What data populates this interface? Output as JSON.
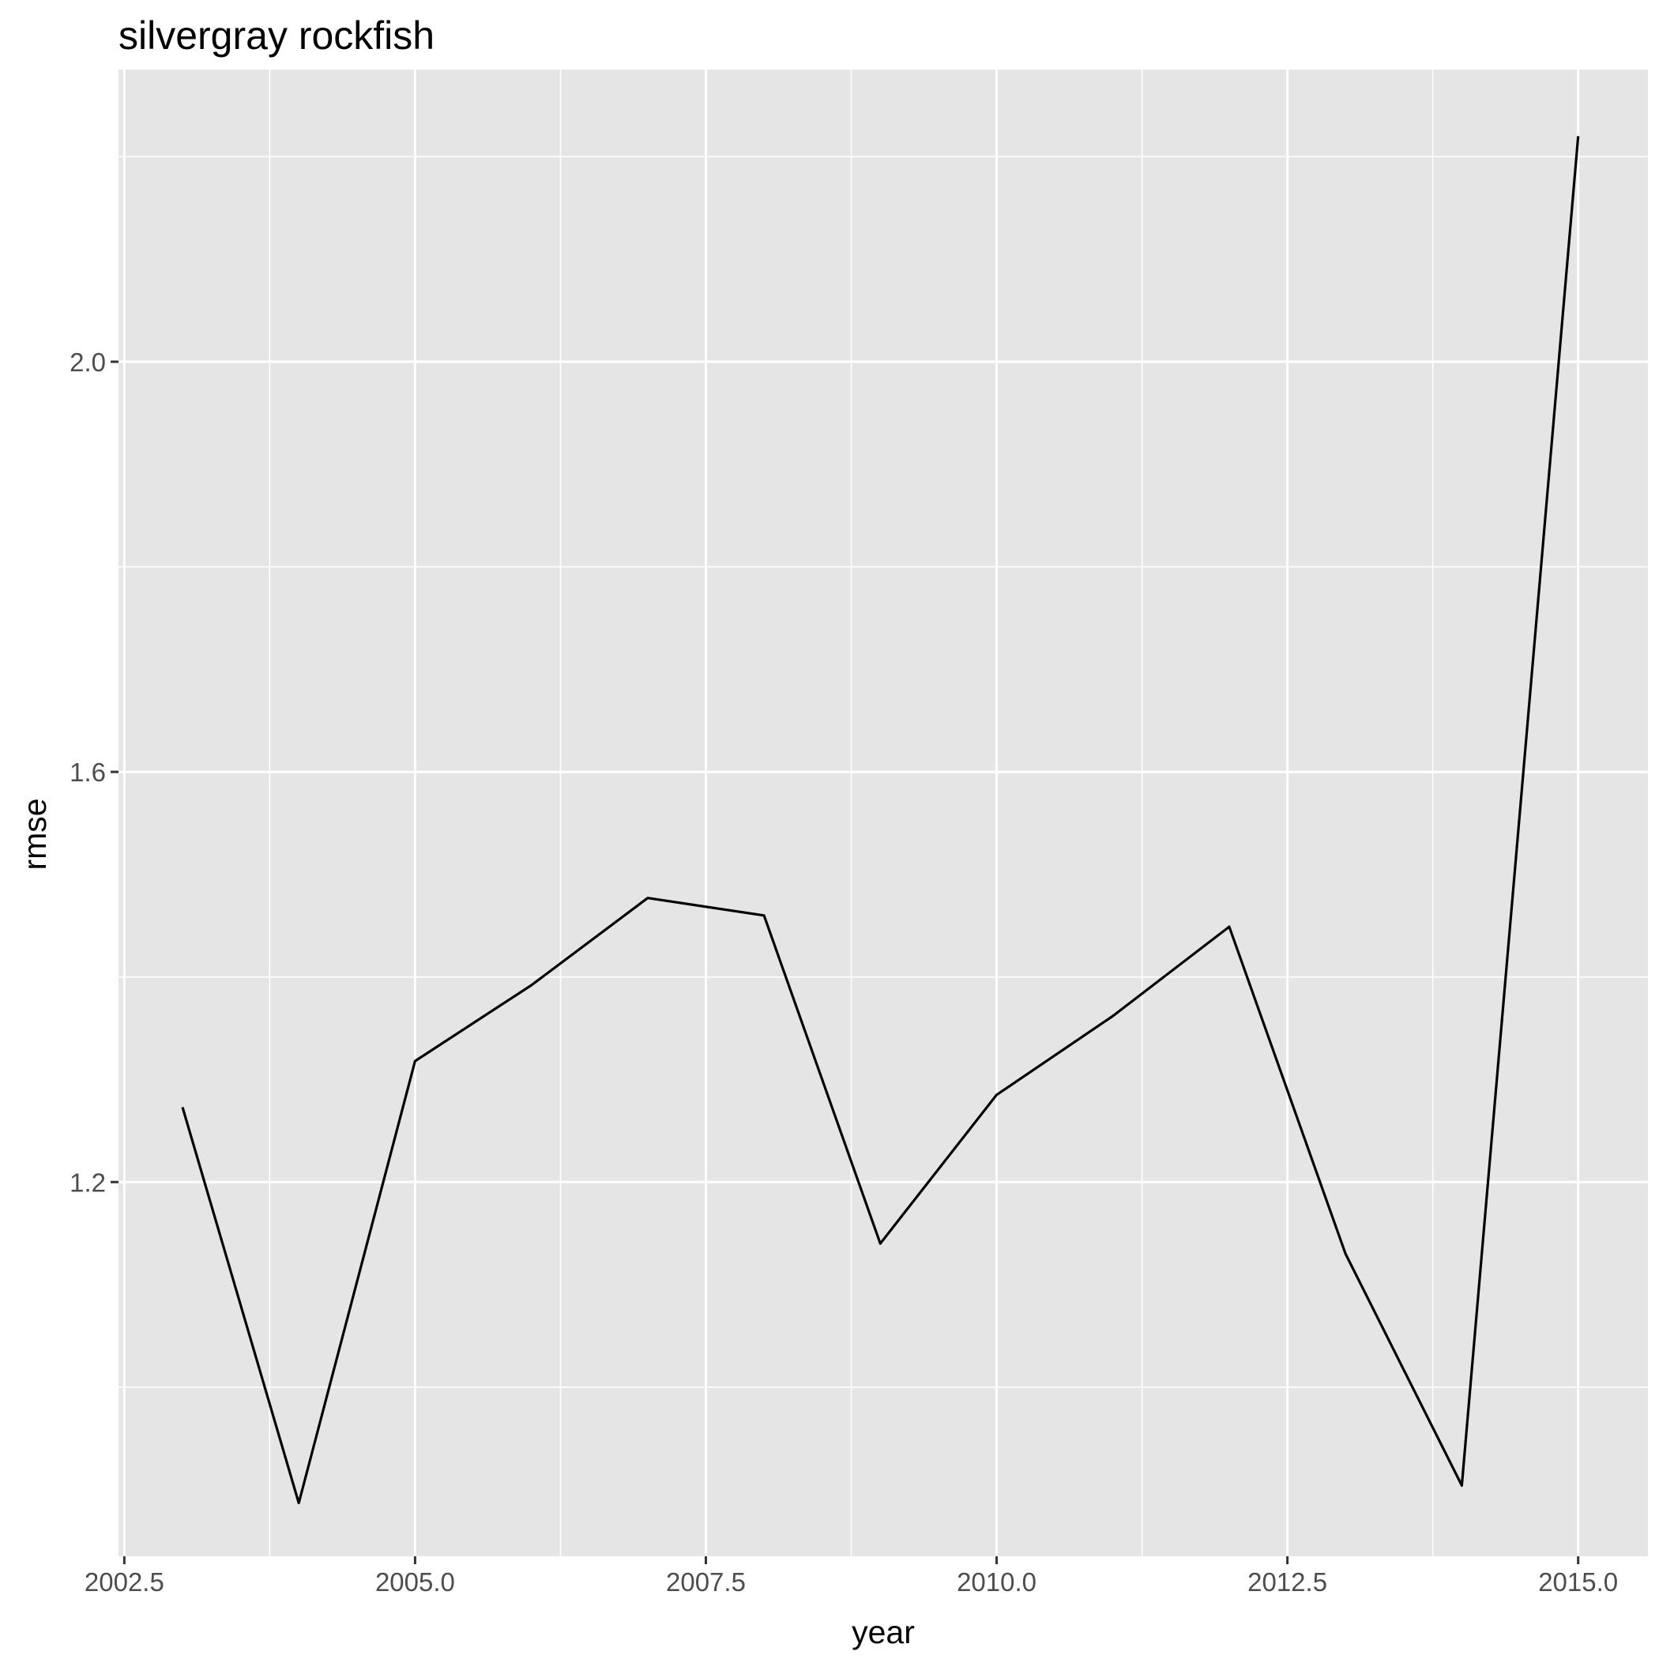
{
  "chart_data": {
    "type": "line",
    "title": "silvergray rockfish",
    "xlabel": "year",
    "ylabel": "rmse",
    "x": [
      2003,
      2004,
      2005,
      2006,
      2007,
      2008,
      2009,
      2010,
      2011,
      2012,
      2013,
      2014,
      2015
    ],
    "series": [
      {
        "values": [
          1.273,
          0.887,
          1.318,
          1.392,
          1.477,
          1.46,
          1.14,
          1.285,
          1.362,
          1.449,
          1.13,
          0.904,
          2.22
        ]
      }
    ],
    "xlim": [
      2002.45,
      2015.6
    ],
    "ylim": [
      0.835,
      2.285
    ],
    "x_ticks": [
      2002.5,
      2005.0,
      2007.5,
      2010.0,
      2012.5,
      2015.0
    ],
    "x_tick_labels": [
      "2002.5",
      "2005.0",
      "2007.5",
      "2010.0",
      "2012.5",
      "2015.0"
    ],
    "y_ticks": [
      1.2,
      1.6,
      2.0
    ],
    "y_tick_labels": [
      "1.2",
      "1.6",
      "2.0"
    ],
    "x_minor_ticks": [
      2003.75,
      2006.25,
      2008.75,
      2011.25,
      2013.75
    ],
    "y_minor_ticks": [
      1.0,
      1.4,
      1.8,
      2.2
    ],
    "grid": true,
    "legend": "none",
    "colors": {
      "panel_background": "#e5e5e5",
      "grid_line": "#ffffff",
      "series_line": "#000000",
      "tick_label": "#4d4d4d",
      "tick_mark": "#333333"
    }
  }
}
